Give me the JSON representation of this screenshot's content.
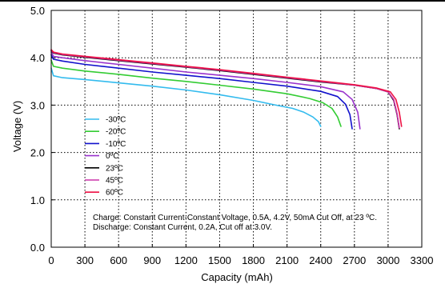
{
  "chart_data": {
    "type": "line",
    "title": "",
    "xlabel": "Capacity (mAh)",
    "ylabel": "Voltage (V)",
    "xlim": [
      0,
      3300
    ],
    "ylim": [
      0.0,
      5.0
    ],
    "xticks": [
      0,
      300,
      600,
      900,
      1200,
      1500,
      1800,
      2100,
      2400,
      2700,
      3000,
      3300
    ],
    "yticks": [
      "0.0",
      "1.0",
      "2.0",
      "3.0",
      "4.0",
      "5.0"
    ],
    "grid": true,
    "legend_position": "left-center",
    "series": [
      {
        "name": "-30ºC",
        "color": "#33bbee",
        "x": [
          0,
          20,
          100,
          300,
          600,
          900,
          1200,
          1500,
          1800,
          2000,
          2150,
          2250,
          2330,
          2380,
          2400
        ],
        "y": [
          3.78,
          3.62,
          3.58,
          3.54,
          3.47,
          3.4,
          3.32,
          3.22,
          3.1,
          3.0,
          2.93,
          2.85,
          2.75,
          2.65,
          2.55
        ]
      },
      {
        "name": "-20ºC",
        "color": "#33cc33",
        "x": [
          0,
          20,
          100,
          300,
          600,
          900,
          1200,
          1500,
          1800,
          2100,
          2300,
          2420,
          2500,
          2550,
          2580
        ],
        "y": [
          3.95,
          3.82,
          3.78,
          3.72,
          3.65,
          3.57,
          3.5,
          3.42,
          3.34,
          3.24,
          3.14,
          3.05,
          2.93,
          2.75,
          2.55
        ]
      },
      {
        "name": "-10ºC",
        "color": "#1111cc",
        "x": [
          0,
          20,
          100,
          300,
          600,
          900,
          1200,
          1500,
          1800,
          2100,
          2400,
          2550,
          2620,
          2660,
          2680
        ],
        "y": [
          4.06,
          3.97,
          3.93,
          3.86,
          3.78,
          3.7,
          3.63,
          3.56,
          3.48,
          3.4,
          3.29,
          3.18,
          3.02,
          2.8,
          2.5
        ]
      },
      {
        "name": "0ºC",
        "color": "#9933cc",
        "x": [
          0,
          20,
          100,
          300,
          600,
          900,
          1200,
          1500,
          1800,
          2100,
          2400,
          2600,
          2680,
          2730,
          2750
        ],
        "y": [
          4.12,
          4.03,
          4.0,
          3.94,
          3.86,
          3.78,
          3.7,
          3.63,
          3.56,
          3.48,
          3.39,
          3.28,
          3.12,
          2.85,
          2.5
        ]
      },
      {
        "name": "23ºC",
        "color": "#000000",
        "x": [
          0,
          20,
          100,
          300,
          600,
          900,
          1200,
          1500,
          1800,
          2100,
          2400,
          2700,
          2900,
          3000,
          3050,
          3080,
          3100
        ],
        "y": [
          4.15,
          4.1,
          4.06,
          4.01,
          3.94,
          3.87,
          3.8,
          3.73,
          3.65,
          3.57,
          3.49,
          3.42,
          3.35,
          3.28,
          3.1,
          2.8,
          2.5
        ]
      },
      {
        "name": "45ºC",
        "color": "#cc33aa",
        "x": [
          0,
          20,
          100,
          300,
          600,
          900,
          1200,
          1500,
          1800,
          2100,
          2400,
          2700,
          2900,
          3000,
          3050,
          3080,
          3100
        ],
        "y": [
          4.16,
          4.11,
          4.07,
          4.02,
          3.95,
          3.88,
          3.81,
          3.74,
          3.66,
          3.58,
          3.5,
          3.42,
          3.35,
          3.28,
          3.12,
          2.82,
          2.52
        ]
      },
      {
        "name": "60ºC",
        "color": "#ee1144",
        "x": [
          0,
          20,
          100,
          300,
          600,
          900,
          1200,
          1500,
          1800,
          2100,
          2400,
          2700,
          2900,
          3020,
          3070,
          3100,
          3120
        ],
        "y": [
          4.17,
          4.12,
          4.08,
          4.03,
          3.96,
          3.89,
          3.82,
          3.75,
          3.67,
          3.59,
          3.51,
          3.43,
          3.36,
          3.28,
          3.12,
          2.85,
          2.55
        ]
      }
    ],
    "annotations": [
      "Charge: Constant Current-Constant Voltage, 0.5A, 4.2V, 50mA Cut Off, at 23 ºC.",
      "Discharge: Constant Current, 0.2A, Cut off at 3.0V."
    ]
  }
}
